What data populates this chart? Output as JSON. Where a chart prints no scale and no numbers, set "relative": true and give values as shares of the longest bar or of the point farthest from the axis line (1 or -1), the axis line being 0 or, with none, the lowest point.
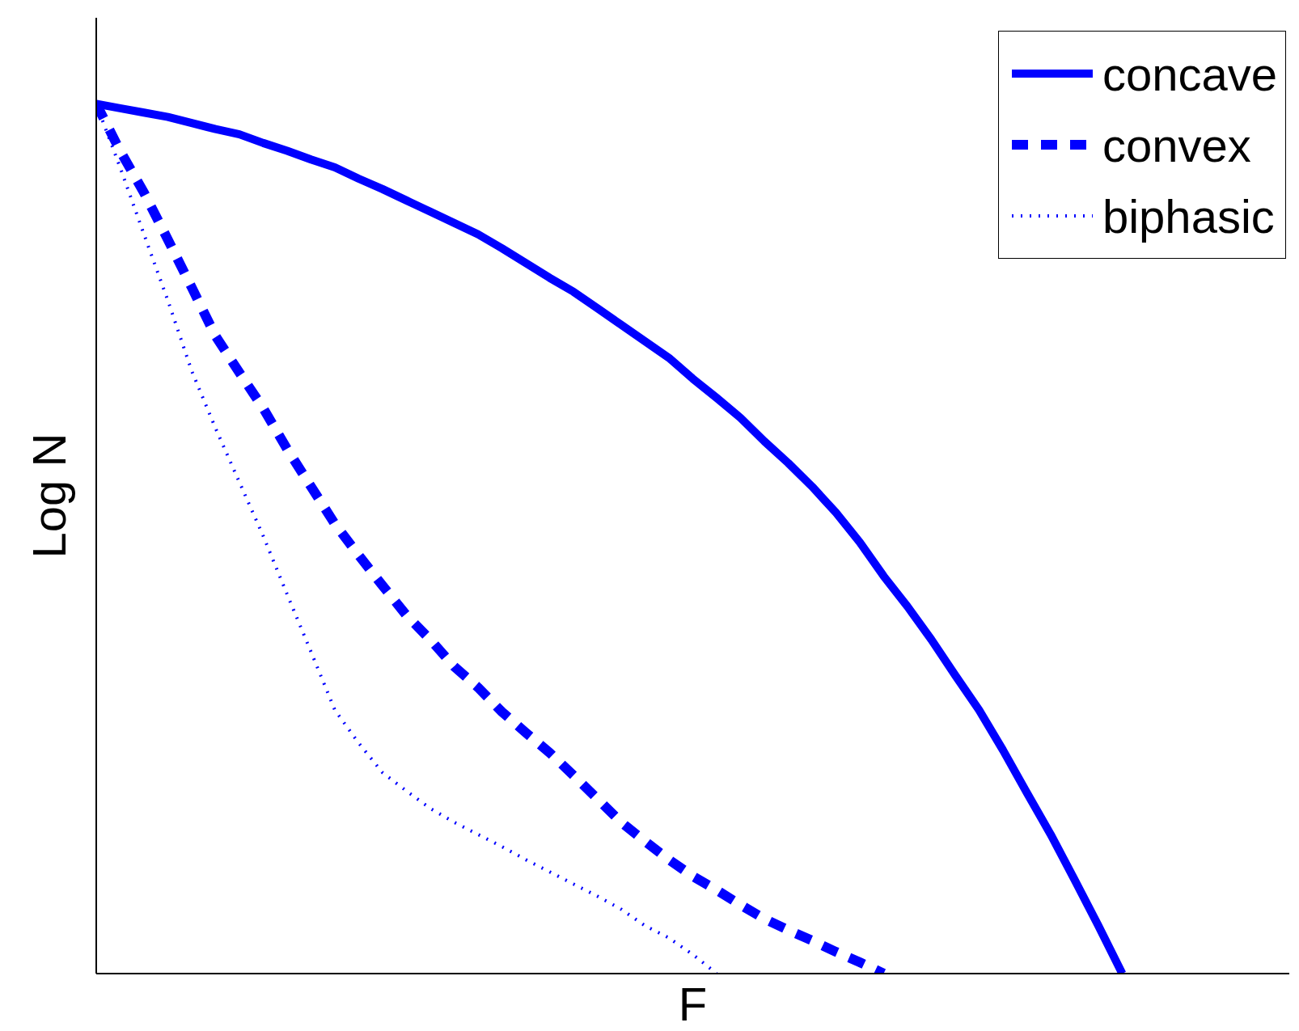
{
  "chart_data": {
    "type": "line",
    "relative": true,
    "xlabel": "F",
    "ylabel": "Log N",
    "legend": "top right",
    "grid": false,
    "tick_labels": false,
    "categories": [
      null,
      null,
      null,
      null,
      null,
      null,
      null,
      null,
      null,
      null,
      null,
      null,
      null,
      null,
      null,
      null,
      null,
      null,
      null,
      null,
      null,
      null,
      null,
      null,
      null,
      null,
      null,
      null,
      null,
      null,
      null,
      null,
      null,
      null,
      null,
      null,
      null,
      null,
      null,
      null,
      null,
      null,
      null,
      null,
      null,
      null,
      null,
      null,
      null,
      null,
      null
    ],
    "series": [
      {
        "name": "concave",
        "color": "#0000ff",
        "line_style": "solid",
        "values": [
          1.0,
          0.995,
          0.99,
          0.985,
          0.978,
          0.971,
          0.965,
          0.955,
          0.946,
          0.936,
          0.927,
          0.914,
          0.902,
          0.889,
          0.876,
          0.863,
          0.85,
          0.834,
          0.817,
          0.8,
          0.784,
          0.765,
          0.746,
          0.727,
          0.708,
          0.684,
          0.662,
          0.639,
          0.612,
          0.587,
          0.56,
          0.53,
          0.496,
          0.457,
          0.422,
          0.384,
          0.343,
          0.303,
          0.257,
          0.208,
          0.16,
          0.108,
          0.055,
          0.0,
          null,
          null,
          null,
          null,
          null,
          null,
          null
        ]
      },
      {
        "name": "convex",
        "color": "#0000ff",
        "line_style": "dashed",
        "values": [
          1.0,
          0.946,
          0.898,
          0.844,
          0.789,
          0.733,
          0.691,
          0.65,
          0.603,
          0.56,
          0.517,
          0.481,
          0.446,
          0.412,
          0.384,
          0.353,
          0.329,
          0.301,
          0.277,
          0.254,
          0.228,
          0.201,
          0.174,
          0.152,
          0.131,
          0.112,
          0.096,
          0.079,
          0.063,
          0.05,
          0.038,
          0.025,
          0.013,
          0.0,
          null,
          null,
          null,
          null,
          null,
          null,
          null,
          null,
          null,
          null,
          null,
          null,
          null,
          null,
          null,
          null,
          null
        ]
      },
      {
        "name": "biphasic",
        "color": "#0000ff",
        "line_style": "dotted",
        "values": [
          1.0,
          0.927,
          0.85,
          0.774,
          0.693,
          0.627,
          0.565,
          0.503,
          0.436,
          0.37,
          0.303,
          0.265,
          0.231,
          0.21,
          0.19,
          0.174,
          0.16,
          0.146,
          0.131,
          0.117,
          0.103,
          0.089,
          0.074,
          0.055,
          0.041,
          0.022,
          0.0,
          null,
          null,
          null,
          null,
          null,
          null,
          null,
          null,
          null,
          null,
          null,
          null,
          null,
          null,
          null,
          null,
          null,
          null,
          null,
          null,
          null,
          null,
          null,
          null
        ]
      }
    ]
  }
}
